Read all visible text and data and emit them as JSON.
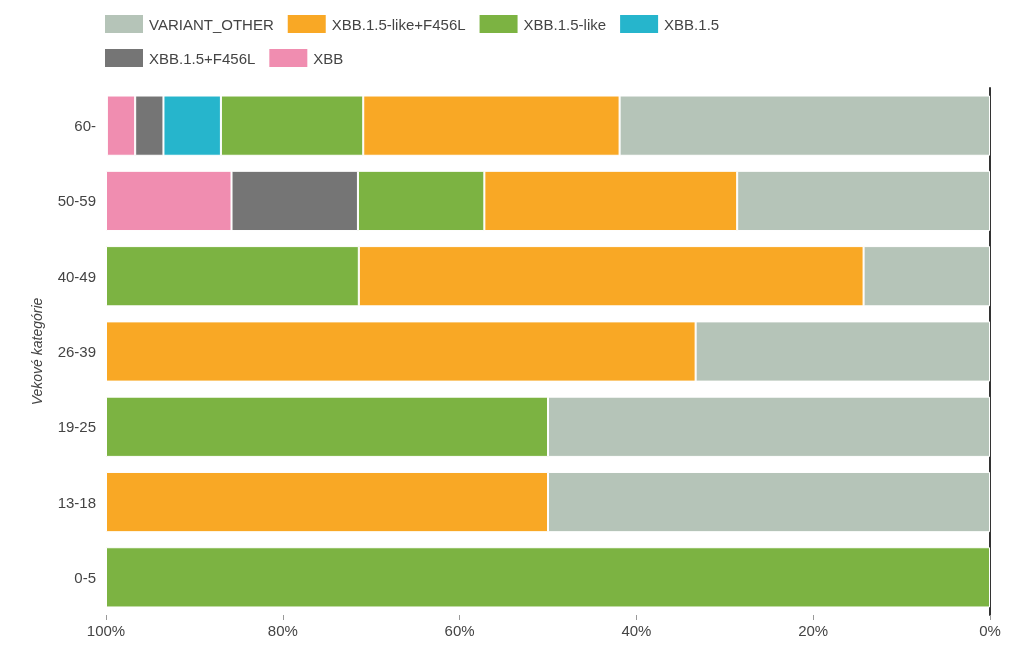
{
  "chart_data": {
    "type": "bar",
    "orientation": "horizontal",
    "stacked": true,
    "ylabel": "Vekové kategórie",
    "categories": [
      "60-",
      "50-59",
      "40-49",
      "26-39",
      "19-25",
      "13-18",
      "0-5"
    ],
    "series": [
      {
        "name": "VARIANT_OTHER",
        "color": "#b5c4b8",
        "values": [
          41.9,
          28.6,
          14.3,
          33.3,
          50,
          50,
          null
        ]
      },
      {
        "name": "XBB.1.5-like+F456L",
        "color": "#f9a825",
        "values": [
          29.0,
          28.6,
          57.1,
          66.7,
          null,
          50,
          null
        ]
      },
      {
        "name": "XBB.1.5-like",
        "color": "#7cb342",
        "values": [
          16.1,
          14.3,
          28.6,
          null,
          50,
          null,
          100
        ]
      },
      {
        "name": "XBB.1.5",
        "color": "#26b5cc",
        "values": [
          6.5,
          null,
          null,
          null,
          null,
          null,
          null
        ]
      },
      {
        "name": "XBB.1.5+F456L",
        "color": "#757575",
        "values": [
          3.2,
          14.3,
          null,
          null,
          null,
          null,
          null
        ]
      },
      {
        "name": "XBB",
        "color": "#f08db0",
        "values": [
          3.2,
          14.2,
          null,
          null,
          null,
          null,
          null
        ]
      }
    ],
    "xlim": [
      100,
      0
    ],
    "xticks": [
      {
        "value": 100,
        "label": "100%"
      },
      {
        "value": 80,
        "label": "80%"
      },
      {
        "value": 60,
        "label": "60%"
      },
      {
        "value": 40,
        "label": "40%"
      },
      {
        "value": 20,
        "label": "20%"
      },
      {
        "value": 0,
        "label": "0%"
      }
    ],
    "grid": false,
    "legend": "top"
  }
}
